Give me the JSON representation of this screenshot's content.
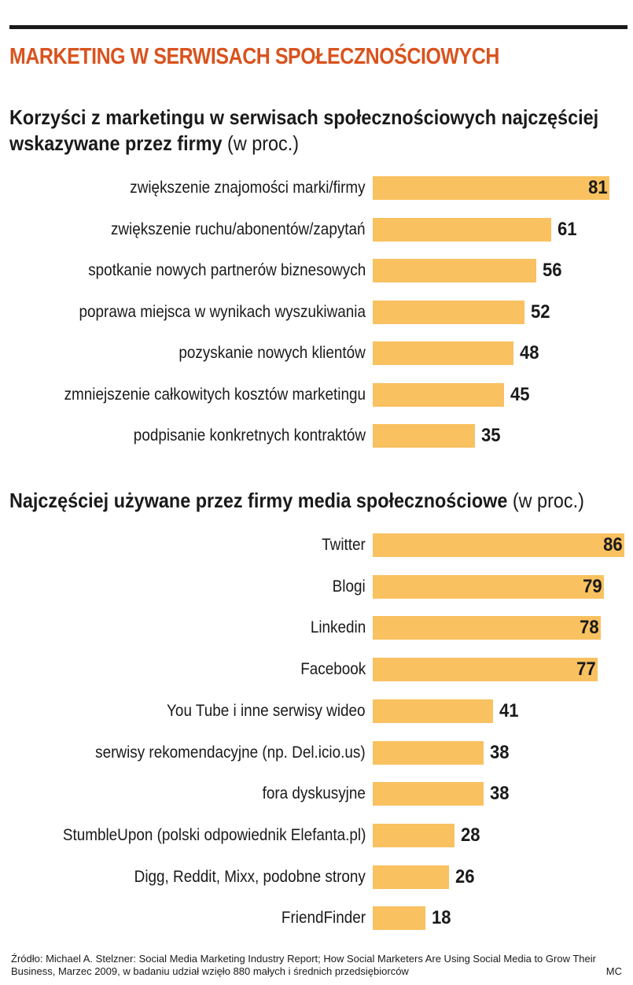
{
  "title": "MARKETING W SERWISACH SPOŁECZNOŚCIOWYCH",
  "source": "Źródło: Michael A. Stelzner: Social Media Marketing Industry Report; How Social Marketers Are Using Social Media to Grow Their Business, Marzec 2009, w badaniu udział wzięło 880 małych i średnich przedsiębiorców",
  "credit": "MC",
  "colors": {
    "bar": "#f9c160",
    "title": "#d9531e"
  },
  "chart_data": [
    {
      "type": "bar",
      "orientation": "horizontal",
      "title": "Korzyści z marketingu w serwisach społecznościowych najczęściej wskazywane przez firmy",
      "title_line1": "Korzyści z marketingu w serwisach społecznościowych najczęściej",
      "title_line2": "wskazywane przez firmy",
      "unit": "(w proc.)",
      "categories": [
        "zwiększenie znajomości marki/firmy",
        "zwiększenie ruchu/abonentów/zapytań",
        "spotkanie nowych partnerów biznesowych",
        "poprawa miejsca w wynikach wyszukiwania",
        "pozyskanie nowych klientów",
        "zmniejszenie całkowitych kosztów marketingu",
        "podpisanie konkretnych kontraktów"
      ],
      "values": [
        81,
        61,
        56,
        52,
        48,
        45,
        35
      ]
    },
    {
      "type": "bar",
      "orientation": "horizontal",
      "title": "Najczęściej używane przez firmy media społecznościowe",
      "unit": "(w proc.)",
      "categories": [
        "Twitter",
        "Blogi",
        "Linkedin",
        "Facebook",
        "You Tube i inne serwisy wideo",
        "serwisy rekomendacyjne (np. Del.icio.us)",
        "fora dyskusyjne",
        "StumbleUpon (polski odpowiednik Elefanta.pl)",
        "Digg, Reddit, Mixx, podobne strony",
        "FriendFinder"
      ],
      "values": [
        86,
        79,
        78,
        77,
        41,
        38,
        38,
        28,
        26,
        18
      ]
    }
  ]
}
